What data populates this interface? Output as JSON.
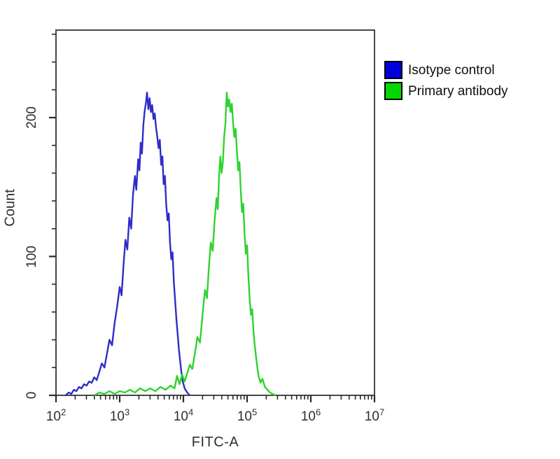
{
  "figure": {
    "background": "#ffffff",
    "frame_color": "#474747",
    "tick_color": "#2a2a2a",
    "text_color": "#2e2e2e"
  },
  "legend": {
    "items": [
      {
        "label": "Isotype control",
        "swatch_color": "#0000dd"
      },
      {
        "label": "Primary antibody",
        "swatch_color": "#00d800"
      }
    ]
  },
  "chart_data": {
    "type": "line",
    "subtype": "flow-cytometry-histogram-overlay",
    "title": "",
    "xlabel": "FITC-A",
    "ylabel": "Count",
    "x_scale": "log10",
    "x_log10_range": [
      2,
      7
    ],
    "y_range": [
      0,
      263
    ],
    "grid": false,
    "legend_position": "outside-top-right",
    "x_ticks": [
      {
        "base": "10",
        "exp": "2"
      },
      {
        "base": "10",
        "exp": "3"
      },
      {
        "base": "10",
        "exp": "4"
      },
      {
        "base": "10",
        "exp": "5"
      },
      {
        "base": "10",
        "exp": "6"
      },
      {
        "base": "10",
        "exp": "7"
      }
    ],
    "x_minor_tick_multiples": [
      2,
      3,
      4,
      5,
      6,
      7,
      8,
      9
    ],
    "y_major_ticks": [
      {
        "value": 0,
        "label": "0"
      },
      {
        "value": 100,
        "label": "100"
      },
      {
        "value": 200,
        "label": "200"
      }
    ],
    "y_minor_tick_step": 20,
    "series": [
      {
        "name": "Isotype control",
        "color": "#2d2dc8",
        "points_log10x_count": [
          [
            2.15,
            0
          ],
          [
            2.2,
            2
          ],
          [
            2.24,
            1
          ],
          [
            2.28,
            4
          ],
          [
            2.32,
            3
          ],
          [
            2.36,
            6
          ],
          [
            2.4,
            5
          ],
          [
            2.44,
            8
          ],
          [
            2.48,
            7
          ],
          [
            2.52,
            10
          ],
          [
            2.56,
            9
          ],
          [
            2.6,
            13
          ],
          [
            2.64,
            11
          ],
          [
            2.68,
            17
          ],
          [
            2.72,
            23
          ],
          [
            2.76,
            20
          ],
          [
            2.8,
            30
          ],
          [
            2.84,
            40
          ],
          [
            2.88,
            36
          ],
          [
            2.92,
            52
          ],
          [
            2.96,
            64
          ],
          [
            3.0,
            78
          ],
          [
            3.03,
            72
          ],
          [
            3.06,
            94
          ],
          [
            3.09,
            112
          ],
          [
            3.12,
            105
          ],
          [
            3.15,
            128
          ],
          [
            3.18,
            120
          ],
          [
            3.21,
            145
          ],
          [
            3.24,
            158
          ],
          [
            3.26,
            148
          ],
          [
            3.29,
            170
          ],
          [
            3.31,
            162
          ],
          [
            3.33,
            182
          ],
          [
            3.35,
            174
          ],
          [
            3.37,
            194
          ],
          [
            3.39,
            204
          ],
          [
            3.41,
            210
          ],
          [
            3.43,
            218
          ],
          [
            3.45,
            206
          ],
          [
            3.47,
            214
          ],
          [
            3.49,
            204
          ],
          [
            3.51,
            209
          ],
          [
            3.53,
            199
          ],
          [
            3.55,
            203
          ],
          [
            3.57,
            193
          ],
          [
            3.59,
            186
          ],
          [
            3.61,
            178
          ],
          [
            3.63,
            184
          ],
          [
            3.65,
            166
          ],
          [
            3.67,
            172
          ],
          [
            3.69,
            152
          ],
          [
            3.71,
            158
          ],
          [
            3.73,
            138
          ],
          [
            3.75,
            126
          ],
          [
            3.77,
            131
          ],
          [
            3.79,
            110
          ],
          [
            3.81,
            98
          ],
          [
            3.83,
            103
          ],
          [
            3.85,
            82
          ],
          [
            3.87,
            68
          ],
          [
            3.89,
            55
          ],
          [
            3.91,
            44
          ],
          [
            3.93,
            33
          ],
          [
            3.95,
            24
          ],
          [
            3.97,
            16
          ],
          [
            3.99,
            10
          ],
          [
            4.02,
            5
          ],
          [
            4.06,
            2
          ],
          [
            4.1,
            0
          ]
        ]
      },
      {
        "name": "Primary antibody",
        "color": "#2ed32e",
        "points_log10x_count": [
          [
            2.6,
            0
          ],
          [
            2.68,
            2
          ],
          [
            2.76,
            1
          ],
          [
            2.84,
            3
          ],
          [
            2.92,
            1
          ],
          [
            3.0,
            3
          ],
          [
            3.08,
            2
          ],
          [
            3.16,
            4
          ],
          [
            3.24,
            2
          ],
          [
            3.32,
            5
          ],
          [
            3.4,
            3
          ],
          [
            3.48,
            5
          ],
          [
            3.56,
            3
          ],
          [
            3.64,
            6
          ],
          [
            3.72,
            4
          ],
          [
            3.8,
            7
          ],
          [
            3.86,
            5
          ],
          [
            3.9,
            14
          ],
          [
            3.94,
            8
          ],
          [
            3.98,
            15
          ],
          [
            4.02,
            10
          ],
          [
            4.06,
            16
          ],
          [
            4.1,
            22
          ],
          [
            4.14,
            19
          ],
          [
            4.18,
            30
          ],
          [
            4.22,
            42
          ],
          [
            4.26,
            38
          ],
          [
            4.3,
            58
          ],
          [
            4.34,
            76
          ],
          [
            4.37,
            70
          ],
          [
            4.4,
            92
          ],
          [
            4.43,
            110
          ],
          [
            4.46,
            104
          ],
          [
            4.49,
            126
          ],
          [
            4.52,
            142
          ],
          [
            4.54,
            134
          ],
          [
            4.56,
            158
          ],
          [
            4.58,
            172
          ],
          [
            4.6,
            160
          ],
          [
            4.62,
            168
          ],
          [
            4.64,
            186
          ],
          [
            4.66,
            196
          ],
          [
            4.68,
            218
          ],
          [
            4.7,
            208
          ],
          [
            4.72,
            213
          ],
          [
            4.74,
            204
          ],
          [
            4.76,
            210
          ],
          [
            4.78,
            196
          ],
          [
            4.8,
            186
          ],
          [
            4.82,
            192
          ],
          [
            4.84,
            176
          ],
          [
            4.86,
            162
          ],
          [
            4.88,
            168
          ],
          [
            4.9,
            148
          ],
          [
            4.92,
            132
          ],
          [
            4.94,
            138
          ],
          [
            4.96,
            116
          ],
          [
            4.98,
            102
          ],
          [
            5.0,
            108
          ],
          [
            5.02,
            86
          ],
          [
            5.04,
            70
          ],
          [
            5.06,
            58
          ],
          [
            5.08,
            62
          ],
          [
            5.1,
            46
          ],
          [
            5.12,
            36
          ],
          [
            5.14,
            28
          ],
          [
            5.16,
            20
          ],
          [
            5.18,
            14
          ],
          [
            5.21,
            9
          ],
          [
            5.24,
            12
          ],
          [
            5.28,
            6
          ],
          [
            5.32,
            4
          ],
          [
            5.36,
            2
          ],
          [
            5.4,
            1
          ],
          [
            5.45,
            0
          ]
        ]
      }
    ]
  }
}
